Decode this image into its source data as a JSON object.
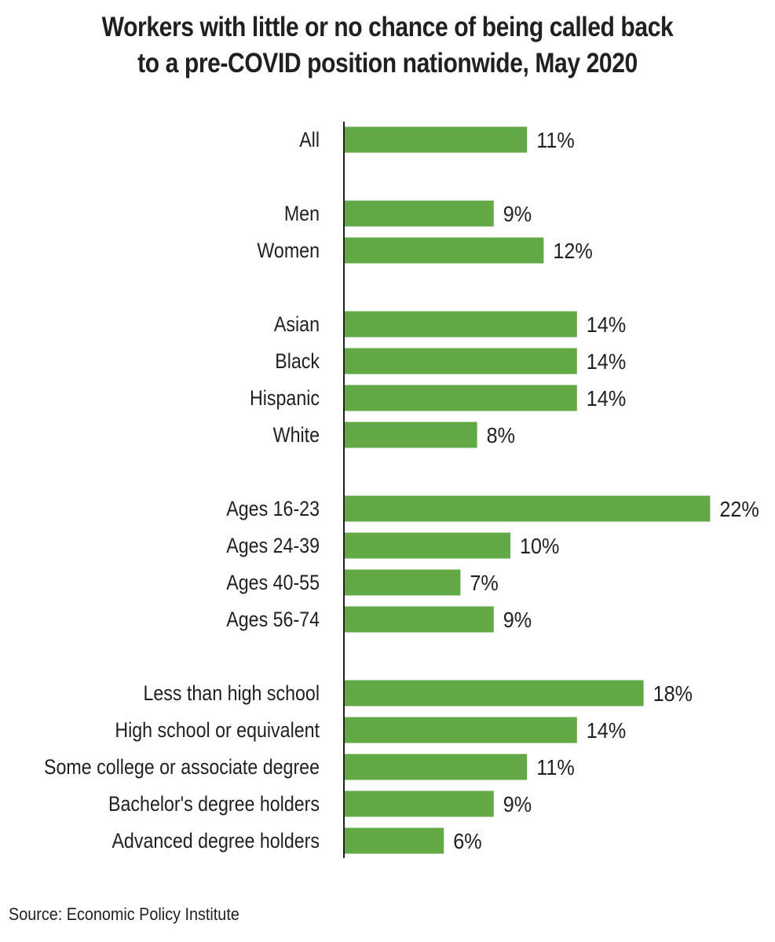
{
  "title_lines": [
    "Workers with little or no chance of being called back",
    "to a pre-COVID position nationwide, May 2020"
  ],
  "source": "Source: Economic Policy Institute",
  "colors": {
    "bar": "#62a844",
    "axis": "#231f20",
    "text": "#231f20"
  },
  "chart_data": {
    "type": "bar",
    "orientation": "horizontal",
    "title": "Workers with little or no chance of being called back to a pre-COVID position nationwide, May 2020",
    "value_suffix": "%",
    "groups": [
      {
        "categories": [
          "All"
        ],
        "values": [
          11
        ]
      },
      {
        "categories": [
          "Men",
          "Women"
        ],
        "values": [
          9,
          12
        ]
      },
      {
        "categories": [
          "Asian",
          "Black",
          "Hispanic",
          "White"
        ],
        "values": [
          14,
          14,
          14,
          8
        ]
      },
      {
        "categories": [
          "Ages 16-23",
          "Ages 24-39",
          "Ages 40-55",
          "Ages 56-74"
        ],
        "values": [
          22,
          10,
          7,
          9
        ]
      },
      {
        "categories": [
          "Less than high school",
          "High school or equivalent",
          "Some college or associate degree",
          "Bachelor's degree holders",
          "Advanced degree holders"
        ],
        "values": [
          18,
          14,
          11,
          9,
          6
        ]
      }
    ],
    "xlim": [
      0,
      22
    ],
    "grid": false,
    "legend": "none"
  }
}
